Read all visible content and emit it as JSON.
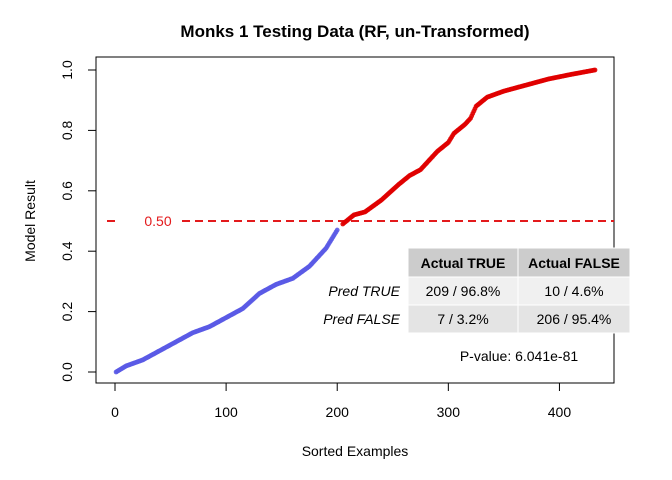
{
  "chart_data": {
    "type": "scatter",
    "title": "Monks 1 Testing Data (RF, un-Transformed)",
    "xlabel": "Sorted Examples",
    "ylabel": "Model Result",
    "xlim": [
      0,
      432
    ],
    "ylim": [
      0,
      1
    ],
    "x_ticks": [
      "0",
      "100",
      "200",
      "300",
      "400"
    ],
    "y_ticks": [
      "0.0",
      "0.2",
      "0.4",
      "0.6",
      "0.8",
      "1.0"
    ],
    "n_points": 432,
    "threshold": {
      "value": 0.5,
      "label": "0.50",
      "color": "#e31a1c"
    },
    "series": [
      {
        "color": "#5a5ae6",
        "x": [
          1,
          10,
          25,
          40,
          55,
          70,
          85,
          100,
          115,
          130,
          145,
          160,
          175,
          190,
          200
        ],
        "y": [
          0.0,
          0.02,
          0.04,
          0.07,
          0.1,
          0.13,
          0.15,
          0.18,
          0.21,
          0.26,
          0.29,
          0.31,
          0.35,
          0.41,
          0.47
        ]
      },
      {
        "color": "#e00000",
        "x": [
          205,
          215,
          225,
          240,
          255,
          265,
          275,
          290,
          300,
          305,
          315,
          320,
          325,
          335,
          350,
          370,
          390,
          410,
          432
        ],
        "y": [
          0.49,
          0.52,
          0.53,
          0.57,
          0.62,
          0.65,
          0.67,
          0.73,
          0.76,
          0.79,
          0.82,
          0.84,
          0.88,
          0.91,
          0.93,
          0.95,
          0.97,
          0.985,
          1.0
        ]
      }
    ],
    "confusion_table": {
      "headers": [
        "Actual TRUE",
        "Actual FALSE"
      ],
      "rows": [
        {
          "label": "Pred TRUE",
          "cells": [
            "209 / 96.8%",
            "10 / 4.6%"
          ]
        },
        {
          "label": "Pred FALSE",
          "cells": [
            "7 / 3.2%",
            "206 / 95.4%"
          ]
        }
      ]
    },
    "pvalue_text": "P-value: 6.041e-81"
  }
}
